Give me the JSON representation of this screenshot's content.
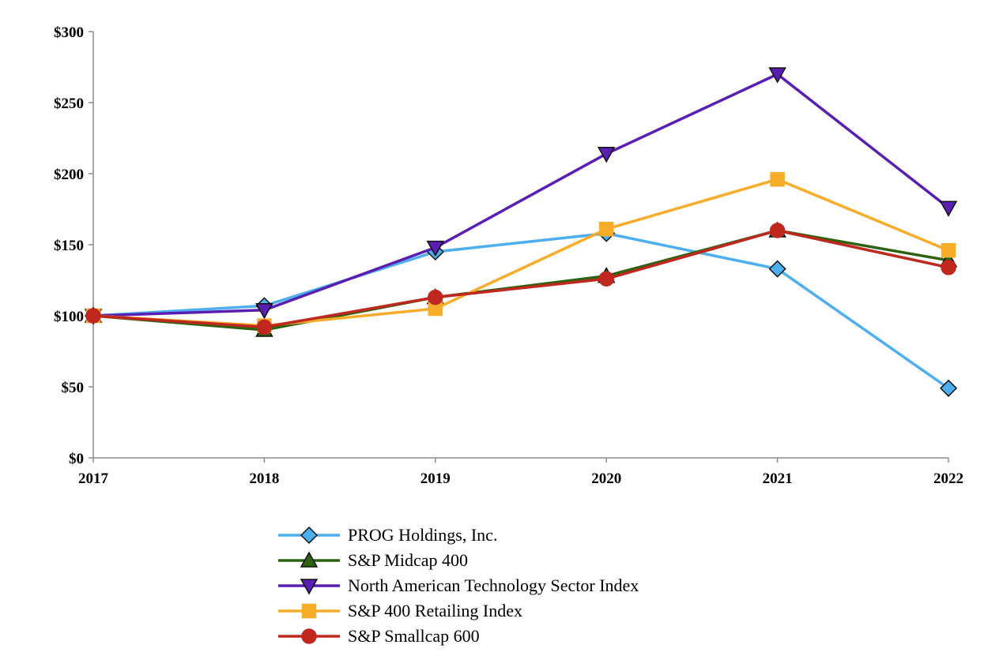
{
  "chart_data": {
    "type": "line",
    "title": "",
    "xlabel": "",
    "ylabel": "",
    "categories": [
      "2017",
      "2018",
      "2019",
      "2020",
      "2021",
      "2022"
    ],
    "ylim": [
      0,
      300
    ],
    "yticks": [
      0,
      50,
      100,
      150,
      200,
      250,
      300
    ],
    "ytick_labels": [
      "$0",
      "$50",
      "$100",
      "$150",
      "$200",
      "$250",
      "$300"
    ],
    "grid": false,
    "legend_position": "bottom-center",
    "series": [
      {
        "name": "PROG Holdings, Inc.",
        "color": "#4dafef",
        "marker": "diamond",
        "values": [
          100,
          107,
          145,
          158,
          133,
          49
        ]
      },
      {
        "name": "S&P Midcap 400",
        "color": "#2d6310",
        "marker": "triangle-up",
        "values": [
          100,
          90,
          113,
          128,
          160,
          139
        ]
      },
      {
        "name": "North American Technology Sector Index",
        "color": "#5a1fb2",
        "marker": "triangle-down",
        "values": [
          100,
          104,
          148,
          214,
          270,
          176
        ]
      },
      {
        "name": "S&P 400 Retailing Index",
        "color": "#f7ac2a",
        "marker": "square",
        "values": [
          100,
          93,
          105,
          161,
          196,
          146
        ]
      },
      {
        "name": "S&P Smallcap 600",
        "color": "#c0271e",
        "marker": "circle",
        "values": [
          100,
          92,
          113,
          126,
          160,
          134
        ]
      }
    ]
  }
}
